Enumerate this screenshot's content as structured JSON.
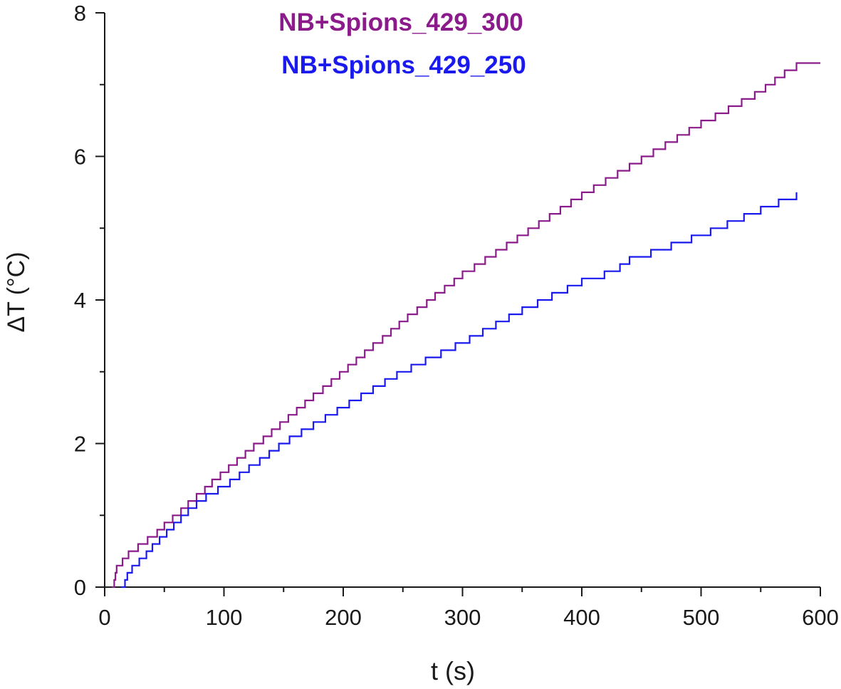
{
  "chart_data": {
    "type": "line",
    "xlabel": "t (s)",
    "ylabel": "ΔT (°C)",
    "xlim": [
      0,
      600
    ],
    "ylim": [
      0,
      8
    ],
    "x_ticks": [
      0,
      100,
      200,
      300,
      400,
      500,
      600
    ],
    "y_ticks": [
      0,
      2,
      4,
      6,
      8
    ],
    "x_tick_labels": [
      "0",
      "100",
      "200",
      "300",
      "400",
      "500",
      "600"
    ],
    "y_tick_labels": [
      "0",
      "2",
      "4",
      "6",
      "8"
    ],
    "grid": false,
    "legend_position": "top-center",
    "step_size": 0.1,
    "series": [
      {
        "name": "NB+Spions_429_300",
        "color": "#8b1a8b",
        "points": [
          [
            6,
            0
          ],
          [
            10,
            0.3
          ],
          [
            20,
            0.5
          ],
          [
            40,
            0.75
          ],
          [
            60,
            1.05
          ],
          [
            80,
            1.35
          ],
          [
            100,
            1.65
          ],
          [
            150,
            2.35
          ],
          [
            200,
            3.05
          ],
          [
            250,
            3.75
          ],
          [
            300,
            4.4
          ],
          [
            350,
            4.95
          ],
          [
            400,
            5.5
          ],
          [
            450,
            6.0
          ],
          [
            500,
            6.5
          ],
          [
            550,
            6.95
          ],
          [
            570,
            7.2
          ],
          [
            580,
            7.3
          ],
          [
            600,
            7.3
          ]
        ]
      },
      {
        "name": "NB+Spions_429_250",
        "color": "#1a1aee",
        "points": [
          [
            14,
            0
          ],
          [
            20,
            0.25
          ],
          [
            40,
            0.6
          ],
          [
            60,
            0.95
          ],
          [
            80,
            1.25
          ],
          [
            100,
            1.45
          ],
          [
            150,
            2.05
          ],
          [
            200,
            2.55
          ],
          [
            250,
            3.05
          ],
          [
            300,
            3.45
          ],
          [
            350,
            3.9
          ],
          [
            400,
            4.3
          ],
          [
            428,
            4.45
          ],
          [
            440,
            4.6
          ],
          [
            500,
            4.95
          ],
          [
            550,
            5.3
          ],
          [
            580,
            5.5
          ]
        ]
      }
    ]
  }
}
